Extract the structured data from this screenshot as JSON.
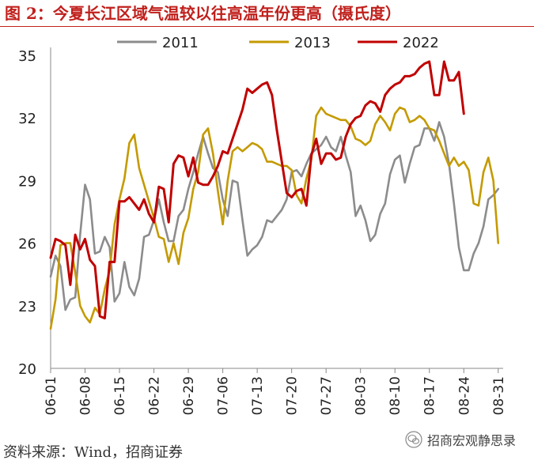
{
  "title": "图 2：今夏长江区域气温较以往高温年份更高（摄氏度）",
  "source": "资料来源：Wind，招商证券",
  "watermark": "招商宏观静思录",
  "watermark_icon": "wechat-icon",
  "colors": {
    "accent": "#c0201c",
    "s2011": "#8c8c8c",
    "s2013": "#c49a00",
    "s2022": "#c00000"
  },
  "chart_data": {
    "type": "line",
    "title": "",
    "xlabel": "",
    "ylabel": "",
    "ylim": [
      20,
      35
    ],
    "yticks": [
      20,
      23,
      26,
      29,
      32,
      35
    ],
    "xlim": [
      0,
      92
    ],
    "xticks": [
      {
        "label": "06-01",
        "x": 0
      },
      {
        "label": "06-08",
        "x": 7
      },
      {
        "label": "06-15",
        "x": 14
      },
      {
        "label": "06-22",
        "x": 21
      },
      {
        "label": "06-29",
        "x": 28
      },
      {
        "label": "07-06",
        "x": 35
      },
      {
        "label": "07-13",
        "x": 42
      },
      {
        "label": "07-20",
        "x": 49
      },
      {
        "label": "07-27",
        "x": 56
      },
      {
        "label": "08-03",
        "x": 63
      },
      {
        "label": "08-10",
        "x": 70
      },
      {
        "label": "08-17",
        "x": 77
      },
      {
        "label": "08-24",
        "x": 84
      },
      {
        "label": "08-31",
        "x": 91
      }
    ],
    "legend_position": "top",
    "series": [
      {
        "name": "2011",
        "color": "#8c8c8c",
        "x": [
          0,
          1,
          2,
          3,
          4,
          5,
          6,
          7,
          8,
          9,
          10,
          11,
          12,
          13,
          14,
          15,
          16,
          17,
          18,
          19,
          20,
          21,
          22,
          23,
          24,
          25,
          26,
          27,
          28,
          29,
          30,
          31,
          32,
          33,
          34,
          35,
          36,
          37,
          38,
          39,
          40,
          41,
          42,
          43,
          44,
          45,
          46,
          47,
          48,
          49,
          50,
          51,
          52,
          53,
          54,
          55,
          56,
          57,
          58,
          59,
          60,
          61,
          62,
          63,
          64,
          65,
          66,
          67,
          68,
          69,
          70,
          71,
          72,
          73,
          74,
          75,
          76,
          77,
          78,
          79,
          80,
          81,
          82,
          83,
          84,
          85,
          86,
          87,
          88,
          89,
          90,
          91
        ],
        "values": [
          24.4,
          25.4,
          24.9,
          22.8,
          23.3,
          23.4,
          26.4,
          28.8,
          28.1,
          25.5,
          25.6,
          26.3,
          25.8,
          23.2,
          23.6,
          25.1,
          23.9,
          23.5,
          24.3,
          26.3,
          26.4,
          27.1,
          28.1,
          27.0,
          26.1,
          26.1,
          27.3,
          27.6,
          28.6,
          29.4,
          30.3,
          31.1,
          30.3,
          29.6,
          29.4,
          28.1,
          27.3,
          29.0,
          28.9,
          27.1,
          25.4,
          25.7,
          25.9,
          26.3,
          27.1,
          27.0,
          27.3,
          27.6,
          28.1,
          29.4,
          29.5,
          29.2,
          29.8,
          30.3,
          30.5,
          30.7,
          31.1,
          30.6,
          30.4,
          31.1,
          30.2,
          29.4,
          27.3,
          27.8,
          27.1,
          26.1,
          26.4,
          27.4,
          27.9,
          29.3,
          30.0,
          30.2,
          28.9,
          29.8,
          30.6,
          30.7,
          31.5,
          31.5,
          30.9,
          31.8,
          31.1,
          29.8,
          27.9,
          25.8,
          24.7,
          24.7,
          25.5,
          26.0,
          26.8,
          28.1,
          28.3,
          28.6
        ]
      },
      {
        "name": "2013",
        "color": "#c49a00",
        "x": [
          0,
          1,
          2,
          3,
          4,
          5,
          6,
          7,
          8,
          9,
          10,
          11,
          12,
          13,
          14,
          15,
          16,
          17,
          18,
          19,
          20,
          21,
          22,
          23,
          24,
          25,
          26,
          27,
          28,
          29,
          30,
          31,
          32,
          33,
          34,
          35,
          36,
          37,
          38,
          39,
          40,
          41,
          42,
          43,
          44,
          45,
          46,
          47,
          48,
          49,
          50,
          51,
          52,
          53,
          54,
          55,
          56,
          57,
          58,
          59,
          60,
          61,
          62,
          63,
          64,
          65,
          66,
          67,
          68,
          69,
          70,
          71,
          72,
          73,
          74,
          75,
          76,
          77,
          78,
          79,
          80,
          81,
          82,
          83,
          84,
          85,
          86,
          87,
          88,
          89,
          90,
          91
        ],
        "values": [
          21.9,
          23.3,
          25.9,
          26.0,
          26.0,
          24.6,
          23.0,
          22.5,
          22.2,
          22.9,
          22.6,
          23.8,
          24.7,
          26.9,
          28.1,
          29.1,
          30.8,
          31.2,
          29.6,
          28.8,
          28.0,
          27.2,
          26.3,
          26.2,
          25.1,
          26.0,
          25.0,
          26.5,
          27.2,
          28.6,
          29.4,
          31.2,
          31.5,
          30.3,
          28.5,
          26.9,
          29.0,
          30.4,
          30.6,
          30.4,
          30.6,
          30.8,
          30.7,
          30.5,
          29.9,
          29.9,
          29.8,
          29.7,
          29.7,
          29.5,
          28.3,
          27.9,
          29.1,
          30.0,
          32.1,
          32.5,
          32.2,
          32.1,
          32.0,
          31.9,
          31.9,
          31.6,
          31.0,
          30.9,
          30.7,
          30.9,
          31.7,
          32.1,
          31.8,
          31.4,
          32.2,
          32.5,
          32.4,
          31.8,
          31.9,
          32.1,
          31.9,
          31.5,
          31.4,
          30.9,
          30.3,
          29.7,
          30.1,
          29.7,
          29.9,
          29.5,
          27.9,
          27.8,
          29.4,
          30.1,
          29.0,
          26.0
        ]
      },
      {
        "name": "2022",
        "color": "#c00000",
        "x": [
          0,
          1,
          2,
          3,
          4,
          5,
          6,
          7,
          8,
          9,
          10,
          11,
          12,
          13,
          14,
          15,
          16,
          17,
          18,
          19,
          20,
          21,
          22,
          23,
          24,
          25,
          26,
          27,
          28,
          29,
          30,
          31,
          32,
          33,
          34,
          35,
          36,
          37,
          38,
          39,
          40,
          41,
          42,
          43,
          44,
          45,
          46,
          47,
          48,
          49,
          50,
          51,
          52,
          53,
          54,
          55,
          56,
          57,
          58,
          59,
          60,
          61,
          62,
          63,
          64,
          65,
          66,
          67,
          68,
          69,
          70,
          71,
          72,
          73,
          74,
          75,
          76,
          77,
          78,
          79,
          80,
          81,
          82,
          83,
          84
        ],
        "values": [
          25.3,
          26.2,
          26.1,
          25.9,
          24.0,
          26.4,
          25.7,
          26.2,
          25.2,
          24.9,
          22.5,
          22.4,
          25.1,
          25.1,
          28.0,
          28.0,
          28.2,
          27.9,
          27.6,
          28.1,
          27.4,
          27.0,
          28.7,
          28.6,
          27.0,
          29.8,
          30.2,
          30.1,
          29.2,
          30.1,
          28.9,
          28.8,
          28.8,
          29.2,
          29.7,
          30.4,
          30.3,
          31.0,
          31.7,
          32.4,
          33.4,
          33.2,
          33.4,
          33.6,
          33.7,
          33.1,
          31.4,
          29.9,
          28.4,
          28.2,
          28.5,
          28.6,
          27.8,
          30.2,
          31.0,
          29.8,
          30.3,
          30.3,
          30.0,
          30.1,
          31.1,
          31.7,
          32.0,
          32.1,
          32.6,
          32.8,
          32.7,
          32.3,
          33.1,
          33.4,
          33.6,
          33.7,
          34.0,
          34.0,
          34.1,
          34.4,
          34.6,
          34.7,
          33.1,
          33.1,
          34.7,
          33.8,
          33.8,
          34.2,
          32.2
        ]
      }
    ]
  }
}
